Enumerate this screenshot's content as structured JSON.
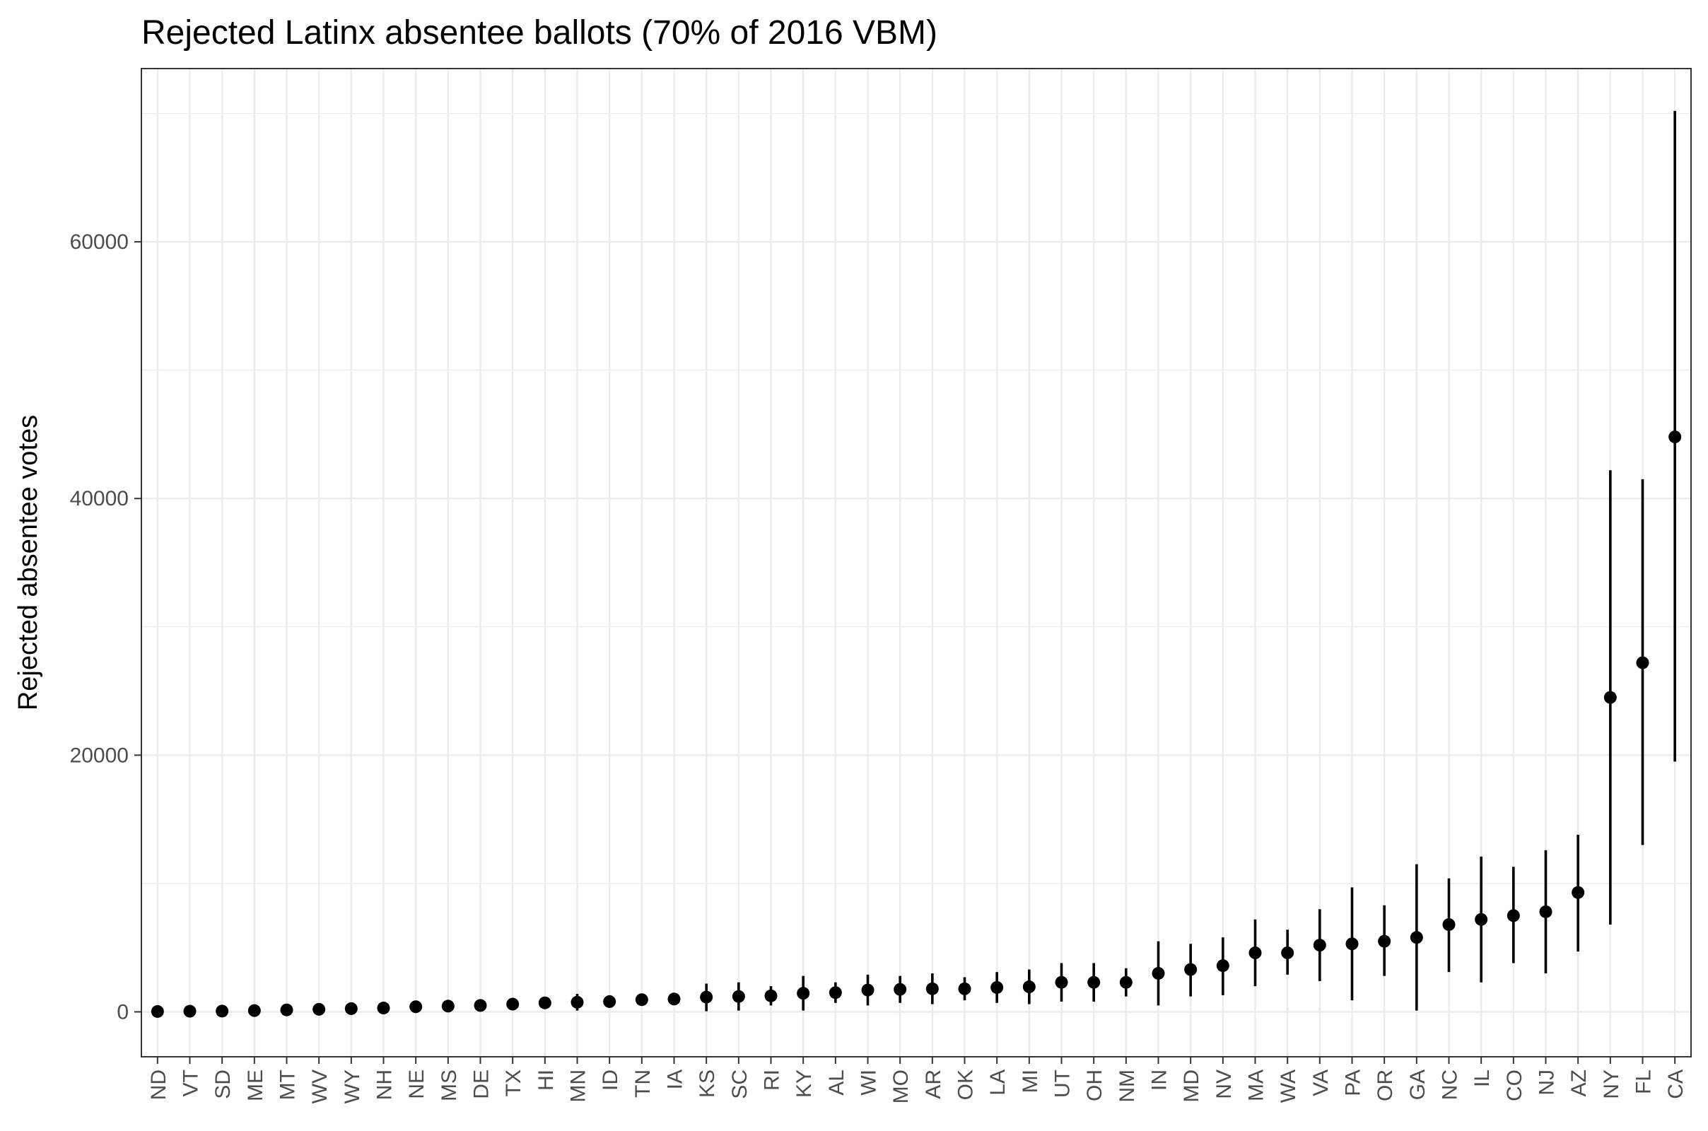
{
  "chart_data": {
    "type": "scatter",
    "title": "Rejected Latinx absentee ballots (70% of 2016 VBM)",
    "xlabel": "",
    "ylabel": "Rejected absentee votes",
    "ylim": [
      -3500,
      73500
    ],
    "y_ticks": [
      {
        "value": 0,
        "label": "0"
      },
      {
        "value": 20000,
        "label": "20000"
      },
      {
        "value": 40000,
        "label": "40000"
      },
      {
        "value": 60000,
        "label": "60000"
      }
    ],
    "y_minor_ticks": [
      10000,
      30000,
      50000,
      70000
    ],
    "grid": true,
    "legend": "none",
    "point_color": "#000000",
    "points": [
      {
        "x": "ND",
        "y": 30,
        "ymin": 0,
        "ymax": 80
      },
      {
        "x": "VT",
        "y": 50,
        "ymin": 0,
        "ymax": 100
      },
      {
        "x": "SD",
        "y": 60,
        "ymin": 0,
        "ymax": 120
      },
      {
        "x": "ME",
        "y": 100,
        "ymin": 20,
        "ymax": 180
      },
      {
        "x": "MT",
        "y": 150,
        "ymin": 50,
        "ymax": 250
      },
      {
        "x": "WV",
        "y": 200,
        "ymin": 80,
        "ymax": 320
      },
      {
        "x": "WY",
        "y": 250,
        "ymin": 100,
        "ymax": 400
      },
      {
        "x": "NH",
        "y": 300,
        "ymin": 150,
        "ymax": 450
      },
      {
        "x": "NE",
        "y": 400,
        "ymin": 250,
        "ymax": 550
      },
      {
        "x": "MS",
        "y": 450,
        "ymin": 300,
        "ymax": 600
      },
      {
        "x": "DE",
        "y": 500,
        "ymin": 350,
        "ymax": 650
      },
      {
        "x": "TX",
        "y": 600,
        "ymin": 450,
        "ymax": 750
      },
      {
        "x": "HI",
        "y": 700,
        "ymin": 500,
        "ymax": 900
      },
      {
        "x": "MN",
        "y": 750,
        "ymin": 100,
        "ymax": 1400
      },
      {
        "x": "ID",
        "y": 800,
        "ymin": 600,
        "ymax": 1000
      },
      {
        "x": "TN",
        "y": 950,
        "ymin": 750,
        "ymax": 1150
      },
      {
        "x": "IA",
        "y": 1000,
        "ymin": 800,
        "ymax": 1200
      },
      {
        "x": "KS",
        "y": 1150,
        "ymin": 50,
        "ymax": 2200
      },
      {
        "x": "SC",
        "y": 1200,
        "ymin": 100,
        "ymax": 2300
      },
      {
        "x": "RI",
        "y": 1250,
        "ymin": 500,
        "ymax": 2000
      },
      {
        "x": "KY",
        "y": 1450,
        "ymin": 100,
        "ymax": 2800
      },
      {
        "x": "AL",
        "y": 1500,
        "ymin": 700,
        "ymax": 2300
      },
      {
        "x": "WI",
        "y": 1700,
        "ymin": 500,
        "ymax": 2900
      },
      {
        "x": "MO",
        "y": 1750,
        "ymin": 700,
        "ymax": 2800
      },
      {
        "x": "AR",
        "y": 1800,
        "ymin": 600,
        "ymax": 3000
      },
      {
        "x": "OK",
        "y": 1800,
        "ymin": 900,
        "ymax": 2700
      },
      {
        "x": "LA",
        "y": 1900,
        "ymin": 700,
        "ymax": 3100
      },
      {
        "x": "MI",
        "y": 1950,
        "ymin": 600,
        "ymax": 3300
      },
      {
        "x": "UT",
        "y": 2300,
        "ymin": 800,
        "ymax": 3800
      },
      {
        "x": "OH",
        "y": 2300,
        "ymin": 800,
        "ymax": 3800
      },
      {
        "x": "NM",
        "y": 2300,
        "ymin": 1200,
        "ymax": 3400
      },
      {
        "x": "IN",
        "y": 3000,
        "ymin": 500,
        "ymax": 5500
      },
      {
        "x": "MD",
        "y": 3300,
        "ymin": 1200,
        "ymax": 5300
      },
      {
        "x": "NV",
        "y": 3600,
        "ymin": 1300,
        "ymax": 5800
      },
      {
        "x": "MA",
        "y": 4600,
        "ymin": 2000,
        "ymax": 7200
      },
      {
        "x": "WA",
        "y": 4600,
        "ymin": 2900,
        "ymax": 6400
      },
      {
        "x": "VA",
        "y": 5200,
        "ymin": 2400,
        "ymax": 8000
      },
      {
        "x": "PA",
        "y": 5300,
        "ymin": 900,
        "ymax": 9700
      },
      {
        "x": "OR",
        "y": 5500,
        "ymin": 2800,
        "ymax": 8300
      },
      {
        "x": "GA",
        "y": 5800,
        "ymin": 100,
        "ymax": 11500
      },
      {
        "x": "NC",
        "y": 6800,
        "ymin": 3100,
        "ymax": 10400
      },
      {
        "x": "IL",
        "y": 7200,
        "ymin": 2300,
        "ymax": 12100
      },
      {
        "x": "CO",
        "y": 7500,
        "ymin": 3800,
        "ymax": 11300
      },
      {
        "x": "NJ",
        "y": 7800,
        "ymin": 3000,
        "ymax": 12600
      },
      {
        "x": "AZ",
        "y": 9300,
        "ymin": 4700,
        "ymax": 13800
      },
      {
        "x": "NY",
        "y": 24500,
        "ymin": 6800,
        "ymax": 42200
      },
      {
        "x": "FL",
        "y": 27200,
        "ymin": 13000,
        "ymax": 41500
      },
      {
        "x": "CA",
        "y": 44800,
        "ymin": 19500,
        "ymax": 70200
      }
    ]
  }
}
